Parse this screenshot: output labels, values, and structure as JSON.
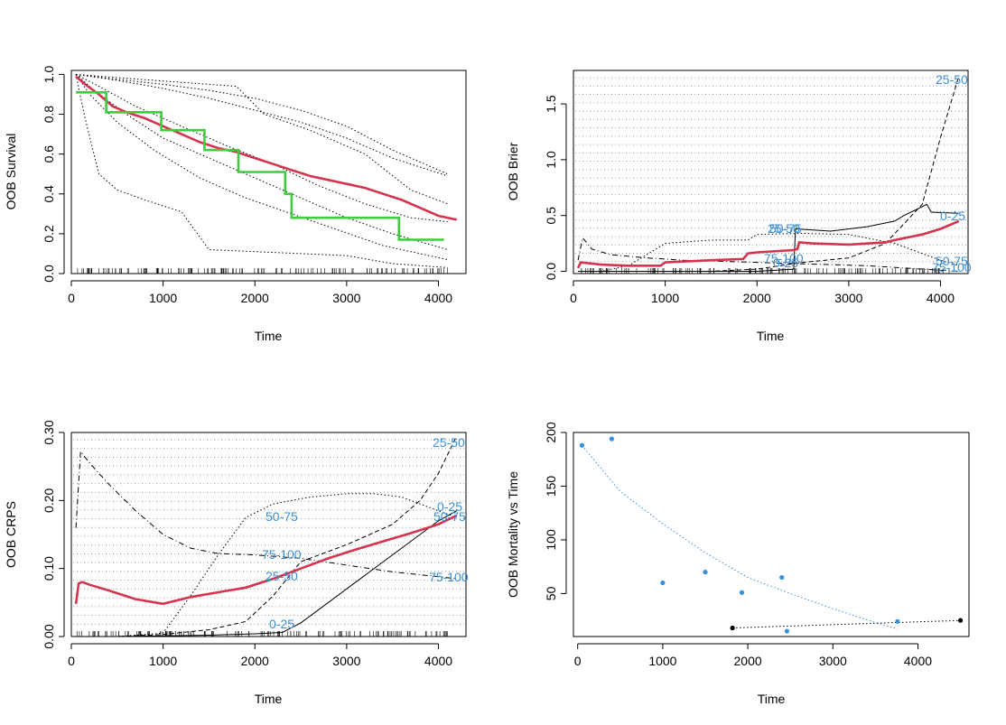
{
  "colors": {
    "red": "#d6334f",
    "green": "#3fcc3f",
    "blue": "#3a8fd9",
    "black": "#000000",
    "gridgray": "#9a9a9a"
  },
  "chart_data": [
    {
      "type": "line",
      "xlabel": "Time",
      "ylabel": "OOB Survival",
      "xlim": [
        0,
        4300
      ],
      "ylim": [
        0,
        1.02
      ],
      "x_ticks": [
        "0",
        "1000",
        "2000",
        "3000",
        "4000"
      ],
      "y_ticks": [
        "0.0",
        "0.2",
        "0.4",
        "0.6",
        "0.8",
        "1.0"
      ],
      "series": [
        {
          "style": "red-thick",
          "x": [
            50,
            150,
            300,
            450,
            600,
            800,
            1000,
            1200,
            1400,
            1600,
            1800,
            2000,
            2200,
            2400,
            2600,
            2800,
            3000,
            3200,
            3400,
            3600,
            3800,
            4000,
            4200
          ],
          "y": [
            0.99,
            0.95,
            0.9,
            0.84,
            0.81,
            0.78,
            0.74,
            0.7,
            0.66,
            0.63,
            0.61,
            0.58,
            0.55,
            0.52,
            0.49,
            0.47,
            0.45,
            0.43,
            0.4,
            0.37,
            0.33,
            0.29,
            0.27
          ]
        },
        {
          "style": "green-step",
          "x": [
            50,
            380,
            380,
            980,
            980,
            1450,
            1450,
            1820,
            1820,
            2330,
            2330,
            2400,
            2400,
            3570,
            3570,
            4060
          ],
          "y": [
            0.91,
            0.91,
            0.81,
            0.81,
            0.72,
            0.72,
            0.62,
            0.62,
            0.51,
            0.51,
            0.4,
            0.4,
            0.28,
            0.28,
            0.17,
            0.17
          ]
        },
        {
          "style": "dotted",
          "x": [
            50,
            400,
            1000,
            1500,
            2000,
            2500,
            3000,
            3500,
            4100
          ],
          "y": [
            1.0,
            0.98,
            0.95,
            0.92,
            0.88,
            0.82,
            0.74,
            0.62,
            0.5
          ]
        },
        {
          "style": "dotted",
          "x": [
            50,
            500,
            1000,
            1500,
            2000,
            2500,
            3000,
            3500,
            4100
          ],
          "y": [
            1.0,
            0.97,
            0.93,
            0.88,
            0.82,
            0.76,
            0.68,
            0.58,
            0.49
          ]
        },
        {
          "style": "dotted",
          "x": [
            50,
            600,
            1200,
            1800,
            2100,
            2600,
            3200,
            3700,
            4100
          ],
          "y": [
            1.0,
            0.98,
            0.96,
            0.94,
            0.8,
            0.72,
            0.6,
            0.42,
            0.35
          ]
        },
        {
          "style": "dotted",
          "x": [
            50,
            300,
            700,
            1200,
            1700,
            2200,
            2700,
            3200,
            3700,
            4100
          ],
          "y": [
            1.0,
            0.94,
            0.84,
            0.74,
            0.64,
            0.55,
            0.44,
            0.35,
            0.28,
            0.26
          ]
        },
        {
          "style": "dotted",
          "x": [
            50,
            250,
            600,
            1000,
            1500,
            2000,
            2500,
            3000,
            3500,
            4100
          ],
          "y": [
            1.0,
            0.92,
            0.8,
            0.68,
            0.58,
            0.48,
            0.38,
            0.28,
            0.2,
            0.12
          ]
        },
        {
          "style": "dotted",
          "x": [
            50,
            200,
            500,
            900,
            1400,
            1900,
            2400,
            2900,
            3400,
            4100
          ],
          "y": [
            1.0,
            0.9,
            0.76,
            0.62,
            0.48,
            0.38,
            0.3,
            0.22,
            0.14,
            0.07
          ]
        },
        {
          "style": "dotted",
          "x": [
            50,
            150,
            300,
            500,
            800,
            1200,
            1500,
            2000,
            2500,
            3000,
            3500,
            4100
          ],
          "y": [
            1.0,
            0.78,
            0.5,
            0.42,
            0.37,
            0.31,
            0.12,
            0.11,
            0.1,
            0.09,
            0.05,
            0.03
          ]
        }
      ]
    },
    {
      "type": "line",
      "xlabel": "Time",
      "ylabel": "OOB Brier",
      "xlim": [
        0,
        4300
      ],
      "ylim": [
        -0.02,
        1.8
      ],
      "x_ticks": [
        "0",
        "1000",
        "2000",
        "3000",
        "4000"
      ],
      "y_ticks": [
        "0.0",
        "0.5",
        "1.0",
        "1.5"
      ],
      "series": [
        {
          "style": "red-thick",
          "x": [
            50,
            80,
            300,
            600,
            950,
            1000,
            1500,
            1850,
            1900,
            2000,
            2400,
            2440,
            2460,
            2600,
            3000,
            3400,
            3500,
            3800,
            4000,
            4200
          ],
          "y": [
            0.03,
            0.08,
            0.06,
            0.05,
            0.05,
            0.08,
            0.1,
            0.11,
            0.16,
            0.17,
            0.19,
            0.2,
            0.26,
            0.25,
            0.24,
            0.26,
            0.28,
            0.33,
            0.38,
            0.45
          ]
        },
        {
          "style": "solid",
          "x": [
            50,
            500,
            1000,
            1500,
            2000,
            2400,
            2420,
            2800,
            3200,
            3500,
            3600,
            3850,
            3900,
            4200
          ],
          "y": [
            0.0,
            0.0,
            0.0,
            0.0,
            0.0,
            0.02,
            0.38,
            0.36,
            0.4,
            0.45,
            0.5,
            0.6,
            0.53,
            0.52
          ]
        },
        {
          "style": "dashed",
          "x": [
            50,
            500,
            1000,
            1500,
            2000,
            2500,
            3000,
            3400,
            3800,
            4000,
            4200
          ],
          "y": [
            0.0,
            0.0,
            0.0,
            0.0,
            0.02,
            0.08,
            0.12,
            0.25,
            0.6,
            1.2,
            1.75
          ]
        },
        {
          "style": "dotted",
          "x": [
            50,
            300,
            600,
            1000,
            1500,
            1900,
            2000,
            2500,
            3000,
            3500,
            4000,
            4200
          ],
          "y": [
            0.0,
            0.0,
            0.05,
            0.25,
            0.28,
            0.28,
            0.33,
            0.34,
            0.33,
            0.25,
            0.1,
            0.05
          ]
        },
        {
          "style": "dashdot",
          "x": [
            50,
            100,
            200,
            400,
            800,
            1200,
            1600,
            2000,
            2400,
            2800,
            3200,
            3600,
            4000,
            4200
          ],
          "y": [
            0.1,
            0.3,
            0.2,
            0.15,
            0.12,
            0.1,
            0.09,
            0.08,
            0.07,
            0.06,
            0.05,
            0.03,
            0.01,
            0.0
          ]
        }
      ],
      "annotations": [
        "25-50",
        "0-25",
        "25-50",
        "50-75",
        "75-100",
        "0-25",
        "50-75",
        "75-100"
      ]
    },
    {
      "type": "line",
      "xlabel": "Time",
      "ylabel": "OOB CRPS",
      "xlim": [
        0,
        4300
      ],
      "ylim": [
        0,
        0.3
      ],
      "x_ticks": [
        "0",
        "1000",
        "2000",
        "3000",
        "4000"
      ],
      "y_ticks": [
        "0.00",
        "0.10",
        "0.20",
        "0.30"
      ],
      "series": [
        {
          "style": "red-thick",
          "x": [
            50,
            80,
            120,
            200,
            400,
            700,
            1000,
            1300,
            1600,
            1900,
            2200,
            2500,
            2800,
            3100,
            3400,
            3700,
            4000,
            4200
          ],
          "y": [
            0.048,
            0.078,
            0.08,
            0.076,
            0.068,
            0.055,
            0.048,
            0.058,
            0.065,
            0.072,
            0.085,
            0.1,
            0.115,
            0.128,
            0.14,
            0.152,
            0.165,
            0.178
          ]
        },
        {
          "style": "solid",
          "x": [
            50,
            500,
            1000,
            1500,
            2000,
            2300,
            2500,
            2800,
            3100,
            3400,
            3700,
            4000,
            4200
          ],
          "y": [
            0.0,
            0.0,
            0.001,
            0.002,
            0.004,
            0.006,
            0.02,
            0.05,
            0.08,
            0.11,
            0.14,
            0.17,
            0.185
          ]
        },
        {
          "style": "dashed",
          "x": [
            50,
            500,
            1000,
            1500,
            1900,
            2200,
            2500,
            3000,
            3500,
            3800,
            4000,
            4200
          ],
          "y": [
            0.0,
            0.0,
            0.003,
            0.01,
            0.022,
            0.06,
            0.11,
            0.135,
            0.165,
            0.2,
            0.24,
            0.295
          ]
        },
        {
          "style": "dotted",
          "x": [
            50,
            500,
            1000,
            1300,
            1600,
            1900,
            2200,
            2600,
            3000,
            3300,
            3600,
            3900,
            4200
          ],
          "y": [
            0.0,
            0.0,
            0.005,
            0.06,
            0.12,
            0.175,
            0.195,
            0.205,
            0.21,
            0.21,
            0.205,
            0.19,
            0.175
          ]
        },
        {
          "style": "dashdot",
          "x": [
            50,
            100,
            200,
            400,
            700,
            1000,
            1300,
            1600,
            2000,
            2500,
            3000,
            3500,
            4000,
            4200
          ],
          "y": [
            0.16,
            0.272,
            0.255,
            0.225,
            0.185,
            0.15,
            0.13,
            0.122,
            0.12,
            0.115,
            0.105,
            0.095,
            0.088,
            0.085
          ]
        }
      ],
      "annotations": [
        "25-50",
        "0-25",
        "50-75",
        "50-75",
        "75-100",
        "25-50",
        "75-100",
        "0-25"
      ]
    },
    {
      "type": "scatter",
      "xlabel": "Time",
      "ylabel": "OOB Mortality vs Time",
      "xlim": [
        -50,
        4600
      ],
      "ylim": [
        10,
        200
      ],
      "x_ticks": [
        "0",
        "1000",
        "2000",
        "3000",
        "4000"
      ],
      "y_ticks": [
        "50",
        "100",
        "150",
        "200"
      ],
      "series": [
        {
          "style": "blue-points",
          "x": [
            50,
            400,
            1000,
            1500,
            1930,
            2400,
            2460,
            3760
          ],
          "y": [
            188,
            194,
            60,
            70,
            51,
            65,
            15,
            24
          ]
        },
        {
          "style": "black-points",
          "x": [
            1820,
            4500
          ],
          "y": [
            18,
            25
          ]
        }
      ],
      "trend_lines": [
        {
          "style": "blue-dotted",
          "x": [
            50,
            500,
            1000,
            1500,
            2000,
            2500,
            3000,
            3500,
            3760
          ],
          "y": [
            188,
            145,
            115,
            88,
            65,
            50,
            36,
            23,
            17
          ]
        },
        {
          "style": "black-dotted",
          "x": [
            1820,
            4500
          ],
          "y": [
            18,
            25
          ]
        }
      ]
    }
  ]
}
